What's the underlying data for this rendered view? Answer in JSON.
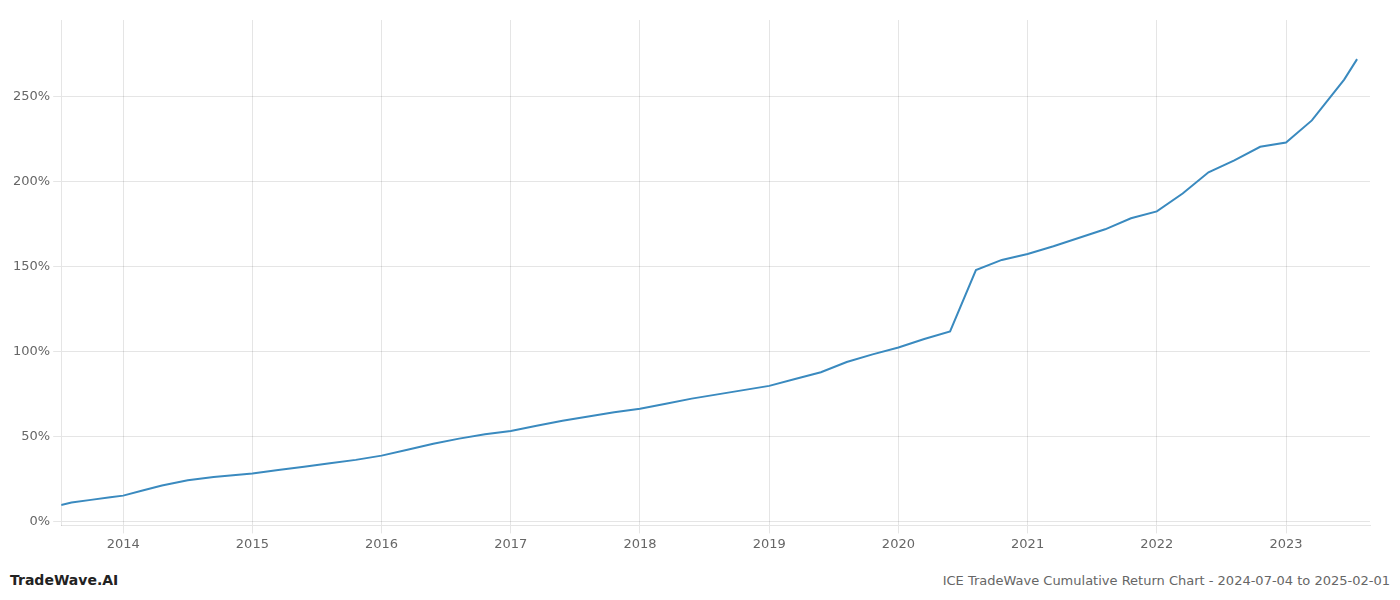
{
  "chart_data": {
    "type": "line",
    "title": "ICE TradeWave Cumulative Return Chart - 2024-07-04 to 2025-02-01",
    "annotations": [
      "TradeWave.AI"
    ],
    "color": "#3a8abf",
    "grid": true,
    "xlim": [
      2013.52,
      2023.65
    ],
    "xticks": [
      2014,
      2015,
      2016,
      2017,
      2018,
      2019,
      2020,
      2021,
      2022,
      2023
    ],
    "ylim": [
      -0.02,
      2.95
    ],
    "yticks": [
      {
        "value": 0.0,
        "label": "0%"
      },
      {
        "value": 0.5,
        "label": "50%"
      },
      {
        "value": 1.0,
        "label": "100%"
      },
      {
        "value": 1.5,
        "label": "150%"
      },
      {
        "value": 2.0,
        "label": "200%"
      },
      {
        "value": 2.5,
        "label": "250%"
      }
    ],
    "x": [
      2013.52,
      2013.6,
      2013.75,
      2013.9,
      2014.0,
      2014.15,
      2014.3,
      2014.5,
      2014.7,
      2014.85,
      2015.0,
      2015.2,
      2015.4,
      2015.6,
      2015.8,
      2016.0,
      2016.2,
      2016.4,
      2016.6,
      2016.8,
      2017.0,
      2017.2,
      2017.4,
      2017.6,
      2017.8,
      2018.0,
      2018.2,
      2018.4,
      2018.6,
      2018.8,
      2019.0,
      2019.2,
      2019.4,
      2019.6,
      2019.8,
      2020.0,
      2020.2,
      2020.4,
      2020.6,
      2020.8,
      2021.0,
      2021.2,
      2021.4,
      2021.6,
      2021.8,
      2022.0,
      2022.2,
      2022.4,
      2022.6,
      2022.8,
      2023.0,
      2023.2,
      2023.45,
      2023.55
    ],
    "values": [
      0.1,
      0.115,
      0.13,
      0.145,
      0.155,
      0.185,
      0.215,
      0.245,
      0.265,
      0.275,
      0.285,
      0.305,
      0.325,
      0.345,
      0.365,
      0.39,
      0.425,
      0.46,
      0.49,
      0.515,
      0.535,
      0.565,
      0.595,
      0.62,
      0.645,
      0.665,
      0.695,
      0.725,
      0.75,
      0.775,
      0.8,
      0.84,
      0.88,
      0.94,
      0.985,
      1.025,
      1.075,
      1.12,
      1.48,
      1.54,
      1.575,
      1.62,
      1.67,
      1.72,
      1.785,
      1.825,
      1.93,
      2.055,
      2.125,
      2.205,
      2.23,
      2.36,
      2.6,
      2.72
    ]
  }
}
